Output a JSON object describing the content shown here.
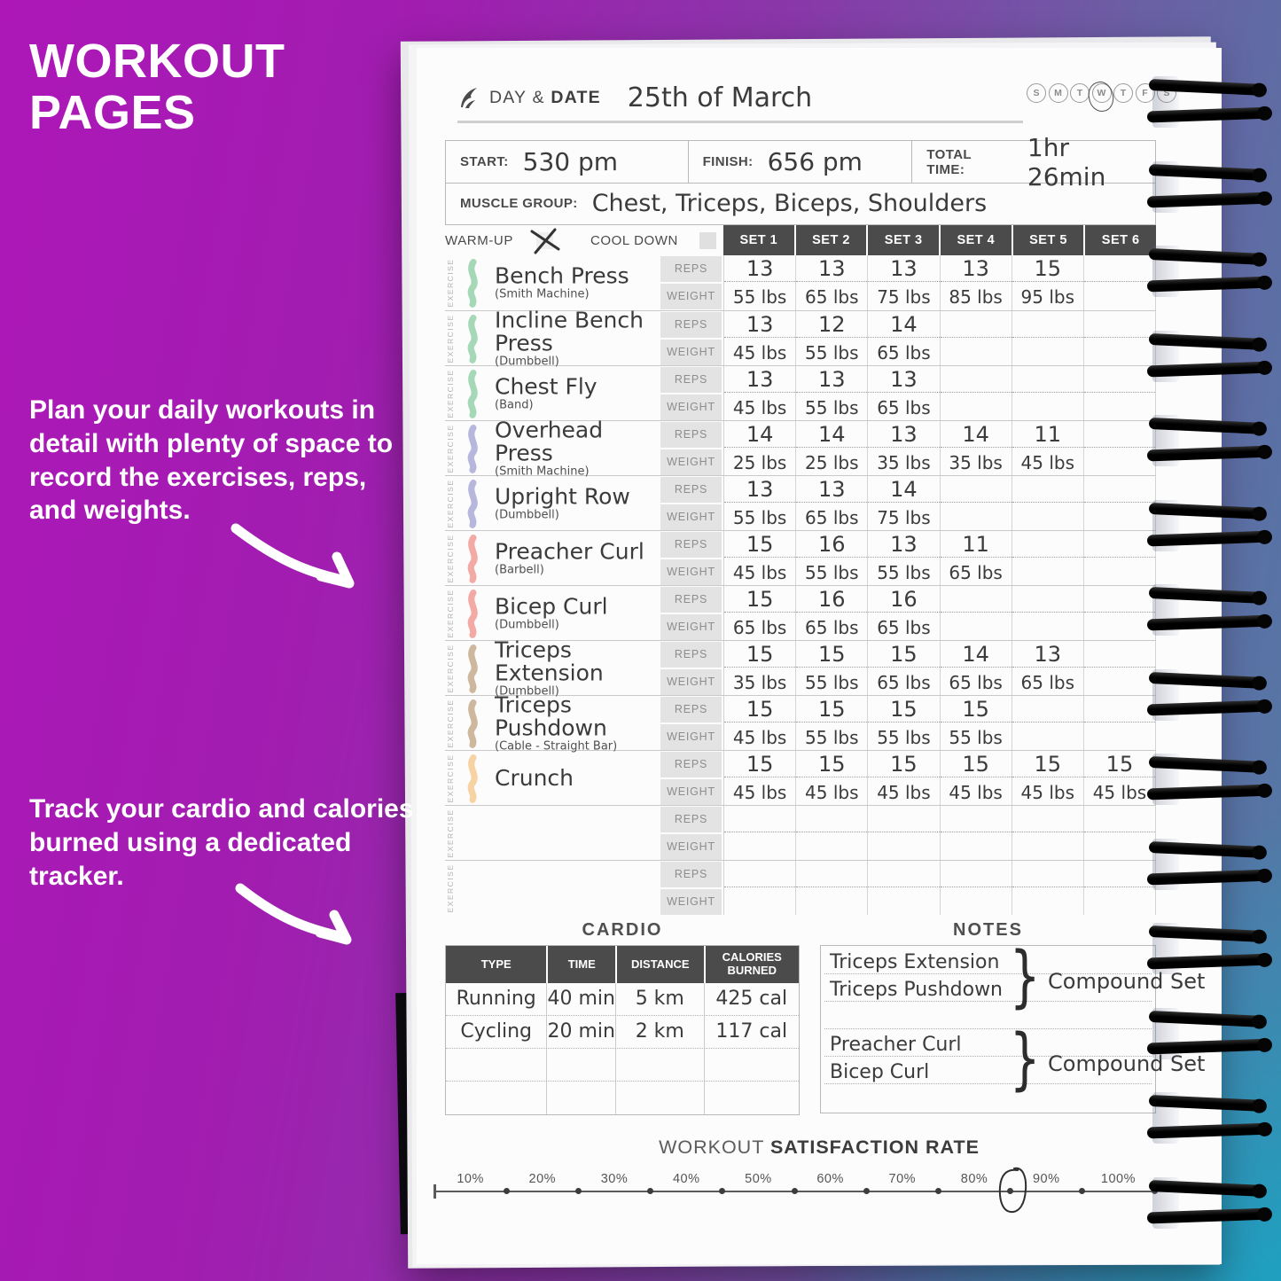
{
  "left_panel": {
    "title_line1": "WORKOUT",
    "title_line2": "PAGES",
    "para1": "Plan your daily workouts in detail with plenty of space to record the exercises, reps, and weights.",
    "para2": "Track your cardio and calories burned using a dedicated tracker."
  },
  "page": {
    "header": {
      "label_regular": "DAY & ",
      "label_bold": "DATE",
      "date_value": "25th of March",
      "week_days": [
        "S",
        "M",
        "T",
        "W",
        "T",
        "F",
        "S"
      ],
      "selected_day_index": 3
    },
    "times": {
      "start_label": "START:",
      "start_value": "530 pm",
      "finish_label": "FINISH:",
      "finish_value": "656 pm",
      "total_label": "TOTAL TIME:",
      "total_value": "1hr 26min"
    },
    "muscle_group_label": "MUSCLE GROUP:",
    "muscle_group_value": "Chest, Triceps, Biceps, Shoulders",
    "warmup_label": "WARM-UP",
    "warmup_checked": true,
    "cooldown_label": "COOL DOWN",
    "cooldown_checked": false,
    "set_headers": [
      "SET 1",
      "SET 2",
      "SET 3",
      "SET 4",
      "SET 5",
      "SET 6"
    ],
    "exercise_label": "EXERCISE",
    "reps_label": "REPS",
    "weight_label": "WEIGHT",
    "exercises": [
      {
        "name": "Bench Press",
        "equipment": "(Smith Machine)",
        "color": "#a5d8b7",
        "reps": [
          "13",
          "13",
          "13",
          "13",
          "15",
          ""
        ],
        "weights": [
          "55 lbs",
          "65 lbs",
          "75 lbs",
          "85 lbs",
          "95 lbs",
          ""
        ]
      },
      {
        "name": "Incline Bench Press",
        "equipment": "(Dumbbell)",
        "color": "#a5d8b7",
        "reps": [
          "13",
          "12",
          "14",
          "",
          "",
          ""
        ],
        "weights": [
          "45 lbs",
          "55 lbs",
          "65 lbs",
          "",
          "",
          ""
        ]
      },
      {
        "name": "Chest Fly",
        "equipment": "(Band)",
        "color": "#a5d8b7",
        "reps": [
          "13",
          "13",
          "13",
          "",
          "",
          ""
        ],
        "weights": [
          "45 lbs",
          "55 lbs",
          "65 lbs",
          "",
          "",
          ""
        ]
      },
      {
        "name": "Overhead Press",
        "equipment": "(Smith Machine)",
        "color": "#b7b6dc",
        "reps": [
          "14",
          "14",
          "13",
          "14",
          "11",
          ""
        ],
        "weights": [
          "25 lbs",
          "25 lbs",
          "35 lbs",
          "35 lbs",
          "45 lbs",
          ""
        ]
      },
      {
        "name": "Upright Row",
        "equipment": "(Dumbbell)",
        "color": "#b7b6dc",
        "reps": [
          "13",
          "13",
          "14",
          "",
          "",
          ""
        ],
        "weights": [
          "55 lbs",
          "65 lbs",
          "75 lbs",
          "",
          "",
          ""
        ]
      },
      {
        "name": "Preacher Curl",
        "equipment": "(Barbell)",
        "color": "#f3aaa5",
        "reps": [
          "15",
          "16",
          "13",
          "11",
          "",
          ""
        ],
        "weights": [
          "45 lbs",
          "55 lbs",
          "55 lbs",
          "65 lbs",
          "",
          ""
        ]
      },
      {
        "name": "Bicep Curl",
        "equipment": "(Dumbbell)",
        "color": "#f3aaa5",
        "reps": [
          "15",
          "16",
          "16",
          "",
          "",
          ""
        ],
        "weights": [
          "65 lbs",
          "65 lbs",
          "65 lbs",
          "",
          "",
          ""
        ]
      },
      {
        "name": "Triceps Extension",
        "equipment": "(Dumbbell)",
        "color": "#cdb79d",
        "reps": [
          "15",
          "15",
          "15",
          "14",
          "13",
          ""
        ],
        "weights": [
          "35 lbs",
          "55 lbs",
          "65 lbs",
          "65 lbs",
          "65 lbs",
          ""
        ]
      },
      {
        "name": "Triceps Pushdown",
        "equipment": "(Cable - Straight Bar)",
        "color": "#cdb79d",
        "reps": [
          "15",
          "15",
          "15",
          "15",
          "",
          ""
        ],
        "weights": [
          "45 lbs",
          "55 lbs",
          "55 lbs",
          "55 lbs",
          "",
          ""
        ]
      },
      {
        "name": "Crunch",
        "equipment": "",
        "color": "#f7d3a3",
        "reps": [
          "15",
          "15",
          "15",
          "15",
          "15",
          "15"
        ],
        "weights": [
          "45 lbs",
          "45 lbs",
          "45 lbs",
          "45 lbs",
          "45 lbs",
          "45 lbs"
        ]
      },
      {
        "name": "",
        "equipment": "",
        "color": "",
        "reps": [
          "",
          "",
          "",
          "",
          "",
          ""
        ],
        "weights": [
          "",
          "",
          "",
          "",
          "",
          ""
        ]
      },
      {
        "name": "",
        "equipment": "",
        "color": "",
        "reps": [
          "",
          "",
          "",
          "",
          "",
          ""
        ],
        "weights": [
          "",
          "",
          "",
          "",
          "",
          ""
        ]
      }
    ]
  },
  "cardio": {
    "title": "CARDIO",
    "headers": [
      "TYPE",
      "TIME",
      "DISTANCE",
      "CALORIES BURNED"
    ],
    "rows": [
      [
        "Running",
        "40 min",
        "5 km",
        "425 cal"
      ],
      [
        "Cycling",
        "20 min",
        "2 km",
        "117 cal"
      ],
      [
        "",
        "",
        "",
        ""
      ],
      [
        "",
        "",
        "",
        ""
      ]
    ]
  },
  "notes": {
    "title": "NOTES",
    "entries": [
      {
        "line1": "Triceps Extension",
        "line2": "Triceps Pushdown",
        "annotation": "Compound Set"
      },
      {
        "line1": "Preacher Curl",
        "line2": "Bicep Curl",
        "annotation": "Compound Set"
      }
    ]
  },
  "satisfaction": {
    "title_regular": "WORKOUT ",
    "title_bold": "SATISFACTION RATE",
    "tick_labels": [
      "10%",
      "20%",
      "30%",
      "40%",
      "50%",
      "60%",
      "70%",
      "80%",
      "90%",
      "100%"
    ],
    "circled_tick_index": 7
  },
  "colors": {
    "header_dark": "#4b4b4b",
    "label_gray_bg": "#e3e3e3",
    "hand_ink": "#3b3b3b",
    "chest_green": "#a5d8b7",
    "shoulders_lavender": "#b7b6dc",
    "biceps_pink": "#f3aaa5",
    "triceps_tan": "#cdb79d",
    "abs_peach": "#f7d3a3",
    "bg_purple": "#a11db0",
    "bg_teal": "#16a6c4"
  }
}
